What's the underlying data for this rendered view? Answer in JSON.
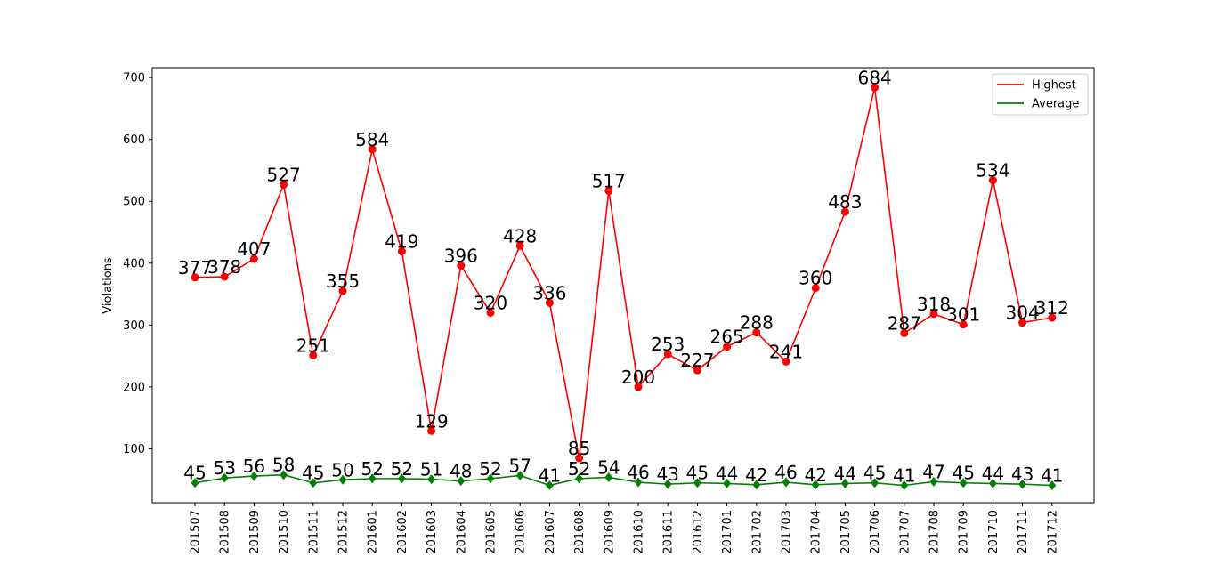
{
  "chart_data": {
    "type": "line",
    "title": "",
    "xlabel": "",
    "ylabel": "Violations",
    "ylim": [
      13,
      716
    ],
    "yticks": [
      100,
      200,
      300,
      400,
      500,
      600,
      700
    ],
    "grid": false,
    "legend_position": "top-right",
    "categories": [
      "201507",
      "201508",
      "201509",
      "201510",
      "201511",
      "201512",
      "201601",
      "201602",
      "201603",
      "201604",
      "201605",
      "201606",
      "201607",
      "201608",
      "201609",
      "201610",
      "201611",
      "201612",
      "201701",
      "201702",
      "201703",
      "201704",
      "201705",
      "201706",
      "201707",
      "201708",
      "201709",
      "201710",
      "201711",
      "201712"
    ],
    "series": [
      {
        "name": "Highest",
        "color": "#ff0000",
        "marker": "circle",
        "values": [
          377,
          378,
          407,
          527,
          251,
          355,
          584,
          419,
          129,
          396,
          320,
          428,
          336,
          85,
          517,
          200,
          253,
          227,
          265,
          288,
          241,
          360,
          483,
          684,
          287,
          318,
          301,
          534,
          304,
          312
        ]
      },
      {
        "name": "Average",
        "color": "#008000",
        "marker": "diamond",
        "values": [
          45,
          53,
          56,
          58,
          45,
          50,
          52,
          52,
          51,
          48,
          52,
          57,
          41,
          52,
          54,
          46,
          43,
          45,
          44,
          42,
          46,
          42,
          44,
          45,
          41,
          47,
          45,
          44,
          43,
          41
        ]
      }
    ]
  }
}
